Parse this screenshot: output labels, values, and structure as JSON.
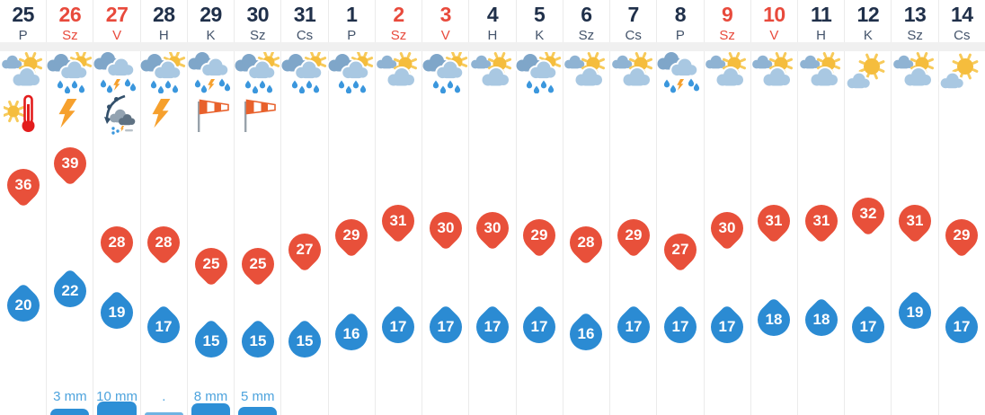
{
  "colors": {
    "weekend_red": "#e84a3c",
    "date_dark": "#20304a",
    "max_pin": "#e8503a",
    "min_drop": "#2b8bd3",
    "precip_text": "#4da3dd",
    "precip_bar": "#2e8fd6",
    "divider": "#ebebeb",
    "separator_band": "#f0f0f0",
    "sun": "#f5bd3d",
    "lightning_orange": "#f6a02d",
    "windsock_orange": "#e8612c"
  },
  "columns": [
    {
      "date": "25",
      "day": "P",
      "weekend": false,
      "weather": "sun-clouds",
      "warning": "heat",
      "max": 36,
      "min": 20,
      "precip": null
    },
    {
      "date": "26",
      "day": "Sz",
      "weekend": true,
      "weather": "clouds-sun-rain",
      "warning": "lightning",
      "max": 39,
      "min": 22,
      "precip": {
        "label": "3 mm",
        "mm": 3
      }
    },
    {
      "date": "27",
      "day": "V",
      "weekend": true,
      "weather": "clouds-rain-lightning",
      "warning": "front",
      "max": 28,
      "min": 19,
      "precip": {
        "label": "10 mm",
        "mm": 10
      }
    },
    {
      "date": "28",
      "day": "H",
      "weekend": false,
      "weather": "clouds-sun-rain",
      "warning": "lightning",
      "max": 28,
      "min": 17,
      "precip": {
        "label": ".",
        "mm": 0
      }
    },
    {
      "date": "29",
      "day": "K",
      "weekend": false,
      "weather": "clouds-rain-lightning",
      "warning": "windsock",
      "max": 25,
      "min": 15,
      "precip": {
        "label": "8 mm",
        "mm": 8
      }
    },
    {
      "date": "30",
      "day": "Sz",
      "weekend": false,
      "weather": "clouds-sun-rain",
      "warning": "windsock",
      "max": 25,
      "min": 15,
      "precip": {
        "label": "5 mm",
        "mm": 5
      }
    },
    {
      "date": "31",
      "day": "Cs",
      "weekend": false,
      "weather": "clouds-sun-rain",
      "warning": null,
      "max": 27,
      "min": 15,
      "precip": null
    },
    {
      "date": "1",
      "day": "P",
      "weekend": false,
      "weather": "clouds-sun-rain",
      "warning": null,
      "max": 29,
      "min": 16,
      "precip": null
    },
    {
      "date": "2",
      "day": "Sz",
      "weekend": true,
      "weather": "sun-clouds",
      "warning": null,
      "max": 31,
      "min": 17,
      "precip": null
    },
    {
      "date": "3",
      "day": "V",
      "weekend": true,
      "weather": "clouds-sun-rain",
      "warning": null,
      "max": 30,
      "min": 17,
      "precip": null
    },
    {
      "date": "4",
      "day": "H",
      "weekend": false,
      "weather": "sun-clouds",
      "warning": null,
      "max": 30,
      "min": 17,
      "precip": null
    },
    {
      "date": "5",
      "day": "K",
      "weekend": false,
      "weather": "clouds-sun-rain",
      "warning": null,
      "max": 29,
      "min": 17,
      "precip": null
    },
    {
      "date": "6",
      "day": "Sz",
      "weekend": false,
      "weather": "sun-clouds",
      "warning": null,
      "max": 28,
      "min": 16,
      "precip": null
    },
    {
      "date": "7",
      "day": "Cs",
      "weekend": false,
      "weather": "sun-clouds",
      "warning": null,
      "max": 29,
      "min": 17,
      "precip": null
    },
    {
      "date": "8",
      "day": "P",
      "weekend": false,
      "weather": "clouds-rain-lightning",
      "warning": null,
      "max": 27,
      "min": 17,
      "precip": null
    },
    {
      "date": "9",
      "day": "Sz",
      "weekend": true,
      "weather": "sun-clouds",
      "warning": null,
      "max": 30,
      "min": 17,
      "precip": null
    },
    {
      "date": "10",
      "day": "V",
      "weekend": true,
      "weather": "sun-clouds",
      "warning": null,
      "max": 31,
      "min": 18,
      "precip": null
    },
    {
      "date": "11",
      "day": "H",
      "weekend": false,
      "weather": "sun-clouds",
      "warning": null,
      "max": 31,
      "min": 18,
      "precip": null
    },
    {
      "date": "12",
      "day": "K",
      "weekend": false,
      "weather": "sun-cloud",
      "warning": null,
      "max": 32,
      "min": 17,
      "precip": null
    },
    {
      "date": "13",
      "day": "Sz",
      "weekend": false,
      "weather": "sun-clouds",
      "warning": null,
      "max": 31,
      "min": 19,
      "precip": null
    },
    {
      "date": "14",
      "day": "Cs",
      "weekend": false,
      "weather": "sun-cloud",
      "warning": null,
      "max": 29,
      "min": 17,
      "precip": null
    }
  ]
}
